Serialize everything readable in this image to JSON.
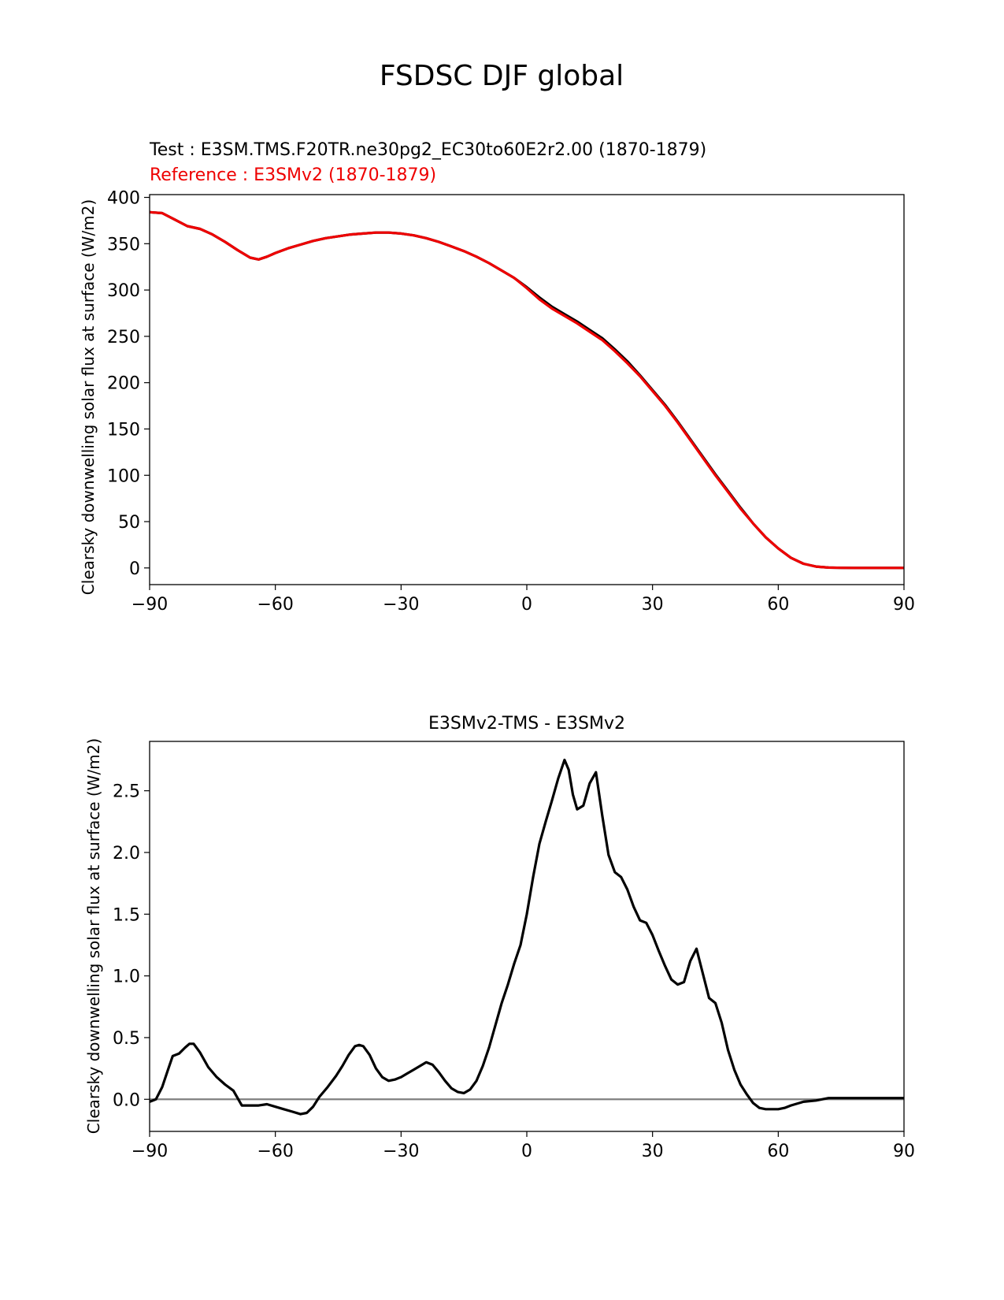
{
  "figure": {
    "suptitle": "FSDSC DJF global"
  },
  "chart_data": [
    {
      "type": "line",
      "test_label": "Test : E3SM.TMS.F20TR.ne30pg2_EC30to60E2r2.00 (1870-1879)",
      "reference_label": "Reference : E3SMv2 (1870-1879)",
      "xlabel": "",
      "ylabel": "Clearsky downwelling solar flux at surface (W/m2)",
      "xlim": [
        -90,
        90
      ],
      "ylim": [
        -18,
        403
      ],
      "xticks": [
        -90,
        -60,
        -30,
        0,
        30,
        60,
        90
      ],
      "xtick_labels": [
        "−90",
        "−60",
        "−30",
        "0",
        "30",
        "60",
        "90"
      ],
      "yticks": [
        0,
        50,
        100,
        150,
        200,
        250,
        300,
        350,
        400
      ],
      "ytick_labels": [
        "0",
        "50",
        "100",
        "150",
        "200",
        "250",
        "300",
        "350",
        "400"
      ],
      "series": [
        {
          "name": "Test",
          "color": "#000000",
          "x": [
            -90,
            -87,
            -84,
            -81,
            -78,
            -75,
            -72,
            -69,
            -66,
            -64,
            -62,
            -60,
            -57,
            -54,
            -51,
            -48,
            -45,
            -42,
            -39,
            -36,
            -33,
            -30,
            -27,
            -24,
            -21,
            -18,
            -15,
            -12,
            -9,
            -6,
            -3,
            0,
            3,
            6,
            9,
            12,
            15,
            18,
            21,
            24,
            27,
            30,
            33,
            36,
            39,
            42,
            45,
            48,
            51,
            54,
            57,
            60,
            63,
            66,
            69,
            72,
            75,
            78,
            81,
            84,
            87,
            90
          ],
          "values": [
            384,
            383,
            376,
            369,
            366,
            360,
            352,
            343,
            335,
            333,
            336,
            340,
            345,
            349,
            353,
            356,
            358,
            360,
            361,
            362,
            362,
            361,
            359,
            356,
            352,
            347,
            342,
            336,
            329,
            321,
            313,
            303,
            292,
            282,
            274,
            266,
            257,
            248,
            236,
            223,
            208,
            192,
            176,
            158,
            139,
            120,
            101,
            83,
            65,
            48,
            33,
            21,
            11,
            4.5,
            1.5,
            0.4,
            0.1,
            0,
            0,
            0,
            0,
            0
          ]
        },
        {
          "name": "Reference",
          "color": "#ee0000",
          "x": [
            -90,
            -87,
            -84,
            -81,
            -78,
            -75,
            -72,
            -69,
            -66,
            -64,
            -62,
            -60,
            -57,
            -54,
            -51,
            -48,
            -45,
            -42,
            -39,
            -36,
            -33,
            -30,
            -27,
            -24,
            -21,
            -18,
            -15,
            -12,
            -9,
            -6,
            -3,
            0,
            3,
            6,
            9,
            12,
            15,
            18,
            21,
            24,
            27,
            30,
            33,
            36,
            39,
            42,
            45,
            48,
            51,
            54,
            57,
            60,
            63,
            66,
            69,
            72,
            75,
            78,
            81,
            84,
            87,
            90
          ],
          "values": [
            384,
            383,
            376,
            369,
            366,
            360,
            352,
            343,
            335,
            333,
            336,
            340,
            345,
            349,
            353,
            356,
            358,
            360,
            361,
            362,
            362,
            361,
            359,
            356,
            352,
            347,
            342,
            336,
            329,
            321,
            313,
            302,
            290,
            280,
            272,
            264,
            255,
            246,
            234,
            221,
            207,
            191,
            175,
            157,
            138,
            119,
            100,
            82,
            64,
            48,
            33,
            21,
            11,
            4.5,
            1.5,
            0.4,
            0.1,
            0,
            0,
            0,
            0,
            0
          ]
        }
      ]
    },
    {
      "type": "line",
      "title": "E3SMv2-TMS - E3SMv2",
      "xlabel": "",
      "ylabel": "Clearsky downwelling solar flux at surface (W/m2)",
      "xlim": [
        -90,
        90
      ],
      "ylim": [
        -0.26,
        2.9
      ],
      "xticks": [
        -90,
        -60,
        -30,
        0,
        30,
        60,
        90
      ],
      "xtick_labels": [
        "−90",
        "−60",
        "−30",
        "0",
        "30",
        "60",
        "90"
      ],
      "yticks": [
        0.0,
        0.5,
        1.0,
        1.5,
        2.0,
        2.5
      ],
      "ytick_labels": [
        "0.0",
        "0.5",
        "1.0",
        "1.5",
        "2.0",
        "2.5"
      ],
      "zero_line": {
        "value": 0,
        "color": "#808080"
      },
      "series": [
        {
          "name": "E3SMv2-TMS - E3SMv2",
          "color": "#000000",
          "x": [
            -90,
            -88.5,
            -87,
            -85.5,
            -84.5,
            -83,
            -81.5,
            -80.5,
            -79.5,
            -78,
            -76,
            -74,
            -72,
            -70,
            -68,
            -66,
            -64,
            -62,
            -60,
            -58,
            -56,
            -54,
            -52.5,
            -51,
            -49.5,
            -47.5,
            -45.5,
            -44,
            -42.5,
            -41,
            -40,
            -39,
            -37.5,
            -36,
            -34.5,
            -33,
            -31.5,
            -30,
            -28.5,
            -27,
            -25.5,
            -24,
            -22.5,
            -21,
            -19.5,
            -18,
            -16.5,
            -15,
            -13.5,
            -12,
            -10.5,
            -9,
            -7.5,
            -6,
            -4.5,
            -3,
            -1.5,
            0,
            1.5,
            3,
            4.5,
            6,
            7.5,
            9,
            10,
            11,
            12,
            13.5,
            15,
            16.5,
            18,
            19.5,
            21,
            22.5,
            24,
            25.5,
            27,
            28.5,
            30,
            31.5,
            33,
            34.5,
            36,
            37.5,
            39,
            40.5,
            42,
            43.5,
            45,
            46.5,
            48,
            49.5,
            51,
            52.5,
            54,
            55.5,
            57,
            60,
            61.5,
            63,
            66,
            69,
            72,
            75,
            78,
            81,
            84,
            87,
            90
          ],
          "values": [
            -0.02,
            0.0,
            0.1,
            0.25,
            0.35,
            0.37,
            0.42,
            0.45,
            0.45,
            0.38,
            0.26,
            0.18,
            0.12,
            0.07,
            -0.05,
            -0.05,
            -0.05,
            -0.04,
            -0.06,
            -0.08,
            -0.1,
            -0.12,
            -0.11,
            -0.06,
            0.02,
            0.1,
            0.19,
            0.27,
            0.36,
            0.43,
            0.44,
            0.43,
            0.36,
            0.25,
            0.18,
            0.15,
            0.16,
            0.18,
            0.21,
            0.24,
            0.27,
            0.3,
            0.28,
            0.22,
            0.15,
            0.09,
            0.06,
            0.05,
            0.08,
            0.15,
            0.27,
            0.42,
            0.6,
            0.78,
            0.93,
            1.1,
            1.25,
            1.5,
            1.8,
            2.07,
            2.25,
            2.42,
            2.6,
            2.75,
            2.67,
            2.47,
            2.35,
            2.38,
            2.56,
            2.65,
            2.3,
            1.98,
            1.84,
            1.8,
            1.7,
            1.56,
            1.45,
            1.43,
            1.33,
            1.2,
            1.08,
            0.97,
            0.93,
            0.95,
            1.12,
            1.22,
            1.02,
            0.82,
            0.78,
            0.62,
            0.4,
            0.24,
            0.12,
            0.04,
            -0.03,
            -0.07,
            -0.08,
            -0.08,
            -0.07,
            -0.05,
            -0.02,
            -0.01,
            0.01,
            0.01,
            0.01,
            0.01,
            0.01,
            0.01,
            0.01
          ]
        }
      ]
    }
  ]
}
